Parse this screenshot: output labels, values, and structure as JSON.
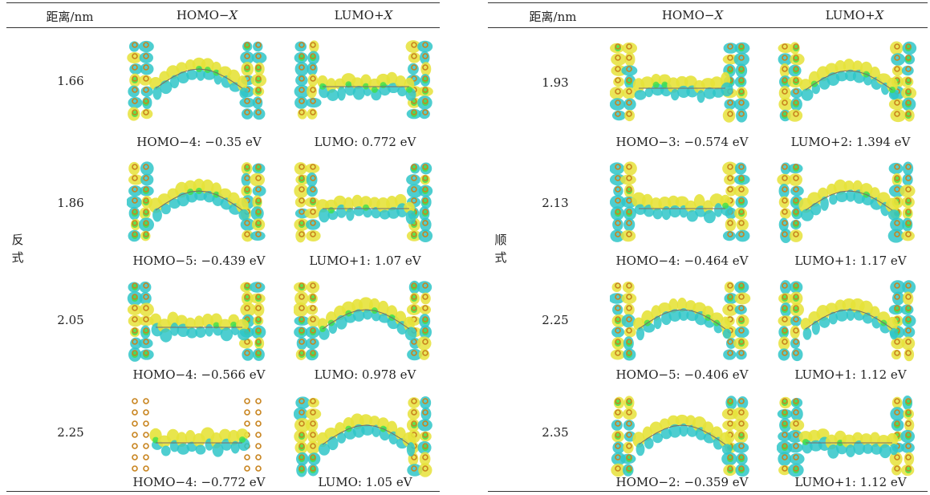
{
  "tables": [
    {
      "group_label": "反式",
      "headers": {
        "distance": "距离/nm",
        "homo": "HOMO−",
        "homo_var": "X",
        "lumo": "LUMO+",
        "lumo_var": "X"
      },
      "rows": [
        {
          "distance": "1.66",
          "homo_caption": "HOMO−4: −0.35 eV",
          "lumo_caption": "LUMO: 0.772 eV"
        },
        {
          "distance": "1.86",
          "homo_caption": "HOMO−5: −0.439 eV",
          "lumo_caption": "LUMO+1: 1.07 eV"
        },
        {
          "distance": "2.05",
          "homo_caption": "HOMO−4: −0.566 eV",
          "lumo_caption": "LUMO: 0.978 eV"
        },
        {
          "distance": "2.25",
          "homo_caption": "HOMO−4: −0.772 eV",
          "lumo_caption": "LUMO: 1.05 eV"
        }
      ]
    },
    {
      "group_label": "顺式",
      "headers": {
        "distance": "距离/nm",
        "homo": "HOMO−",
        "homo_var": "X",
        "lumo": "LUMO+",
        "lumo_var": "X"
      },
      "rows": [
        {
          "distance": "1.93",
          "homo_caption": "HOMO−3: −0.574 eV",
          "lumo_caption": "LUMO+2: 1.394 eV"
        },
        {
          "distance": "2.13",
          "homo_caption": "HOMO−4: −0.464 eV",
          "lumo_caption": "LUMO+1: 1.17 eV"
        },
        {
          "distance": "2.25",
          "homo_caption": "HOMO−5: −0.406 eV",
          "lumo_caption": "LUMO+1: 1.12 eV"
        },
        {
          "distance": "2.35",
          "homo_caption": "HOMO−2: −0.359 eV",
          "lumo_caption": "LUMO+1: 1.12 eV"
        }
      ]
    }
  ],
  "colors": {
    "gold_atom": "#c8841e",
    "yellow_lobe": "#e6e23a",
    "cyan_lobe": "#2fc6c8",
    "green_lobe": "#3fe04a"
  }
}
